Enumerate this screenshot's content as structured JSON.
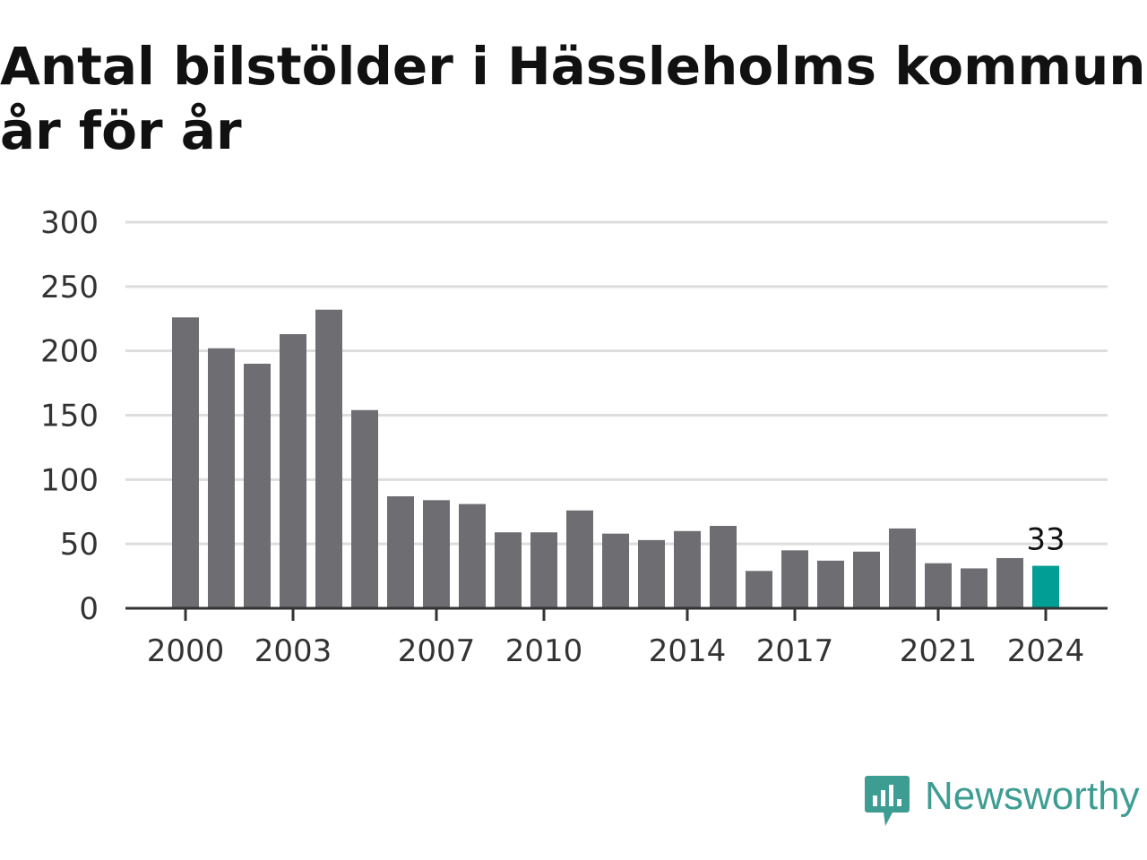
{
  "title": {
    "line1": "Antal bilstölder i Hässleholms kommun",
    "line2": "år för år"
  },
  "brand": {
    "name": "Newsworthy",
    "icon": "newsworthy-logo-icon",
    "color": "#3e9d93"
  },
  "colors": {
    "bar": "#6e6d72",
    "highlight": "#009e94",
    "grid": "#dddddd",
    "axis": "#333333"
  },
  "chart_data": {
    "type": "bar",
    "title": "Antal bilstölder i Hässleholms kommun år för år",
    "xlabel": "",
    "ylabel": "",
    "ylim": [
      0,
      300
    ],
    "yticks": [
      0,
      50,
      100,
      150,
      200,
      250,
      300
    ],
    "xtick_labels": [
      "2000",
      "2003",
      "2007",
      "2010",
      "2014",
      "2017",
      "2021",
      "2024"
    ],
    "grid": true,
    "categories": [
      "2000",
      "2001",
      "2002",
      "2003",
      "2004",
      "2005",
      "2006",
      "2007",
      "2008",
      "2009",
      "2010",
      "2011",
      "2012",
      "2013",
      "2014",
      "2015",
      "2016",
      "2017",
      "2018",
      "2019",
      "2020",
      "2021",
      "2022",
      "2023",
      "2024"
    ],
    "values": [
      226,
      202,
      190,
      213,
      232,
      154,
      87,
      84,
      81,
      59,
      59,
      76,
      58,
      53,
      60,
      64,
      29,
      45,
      37,
      44,
      62,
      35,
      31,
      39,
      33
    ],
    "highlight": {
      "category": "2024",
      "label": "33"
    }
  }
}
